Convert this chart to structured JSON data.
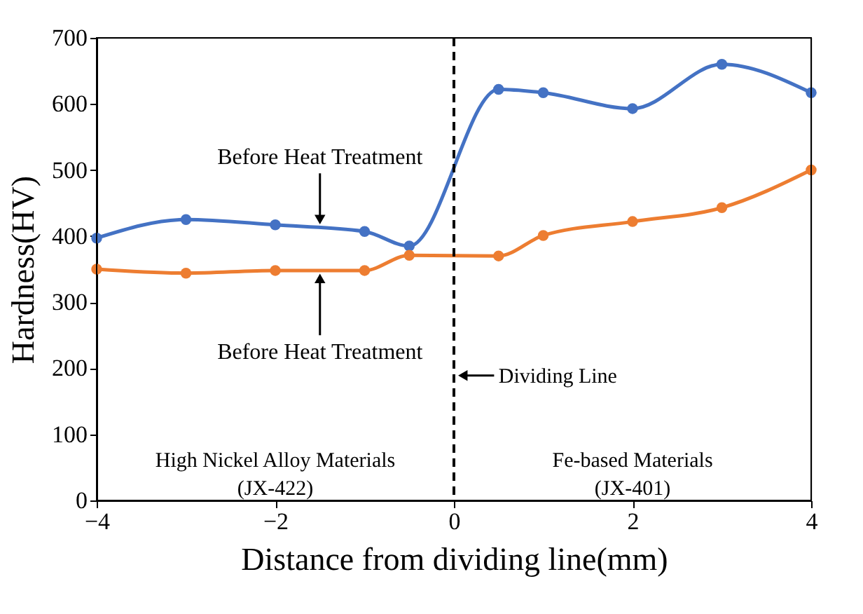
{
  "chart_data": {
    "type": "line",
    "xlabel": "Distance from dividing line(mm)",
    "ylabel": "Hardness(HV)",
    "x": [
      -4,
      -3,
      -2,
      -1,
      -0.5,
      0.5,
      1,
      2,
      3,
      4
    ],
    "series": [
      {
        "color": "#4472c4",
        "values": [
          397,
          425,
          417,
          407,
          385,
          622,
          617,
          593,
          660,
          617
        ]
      },
      {
        "color": "#ed7d31",
        "values": [
          350,
          344,
          348,
          348,
          371,
          370,
          401,
          422,
          443,
          500
        ]
      }
    ],
    "xlim": [
      -4,
      4
    ],
    "xticks": [
      {
        "value": -4,
        "label": "−4"
      },
      {
        "value": -2,
        "label": "−2"
      },
      0,
      2,
      4
    ],
    "ylim": [
      0,
      700
    ],
    "yticks": [
      0,
      100,
      200,
      300,
      400,
      500,
      600,
      700
    ],
    "grid": false,
    "legend": false,
    "marker": "circle",
    "line_style": "solid",
    "ref_lines": [
      {
        "axis": "x",
        "value": 0,
        "label": "Dividing Line",
        "line_style": "dashed",
        "color": "#000000"
      }
    ],
    "annotations": [
      {
        "text": "Before Heat Treatment",
        "x": -1.5,
        "y": 413
      },
      {
        "text": "Before Heat Treatment",
        "x": -1.5,
        "y": 348
      },
      "High Nickel Alloy Materials\n(JX-422)",
      "Fe-based Materials\n(JX-401)"
    ]
  }
}
